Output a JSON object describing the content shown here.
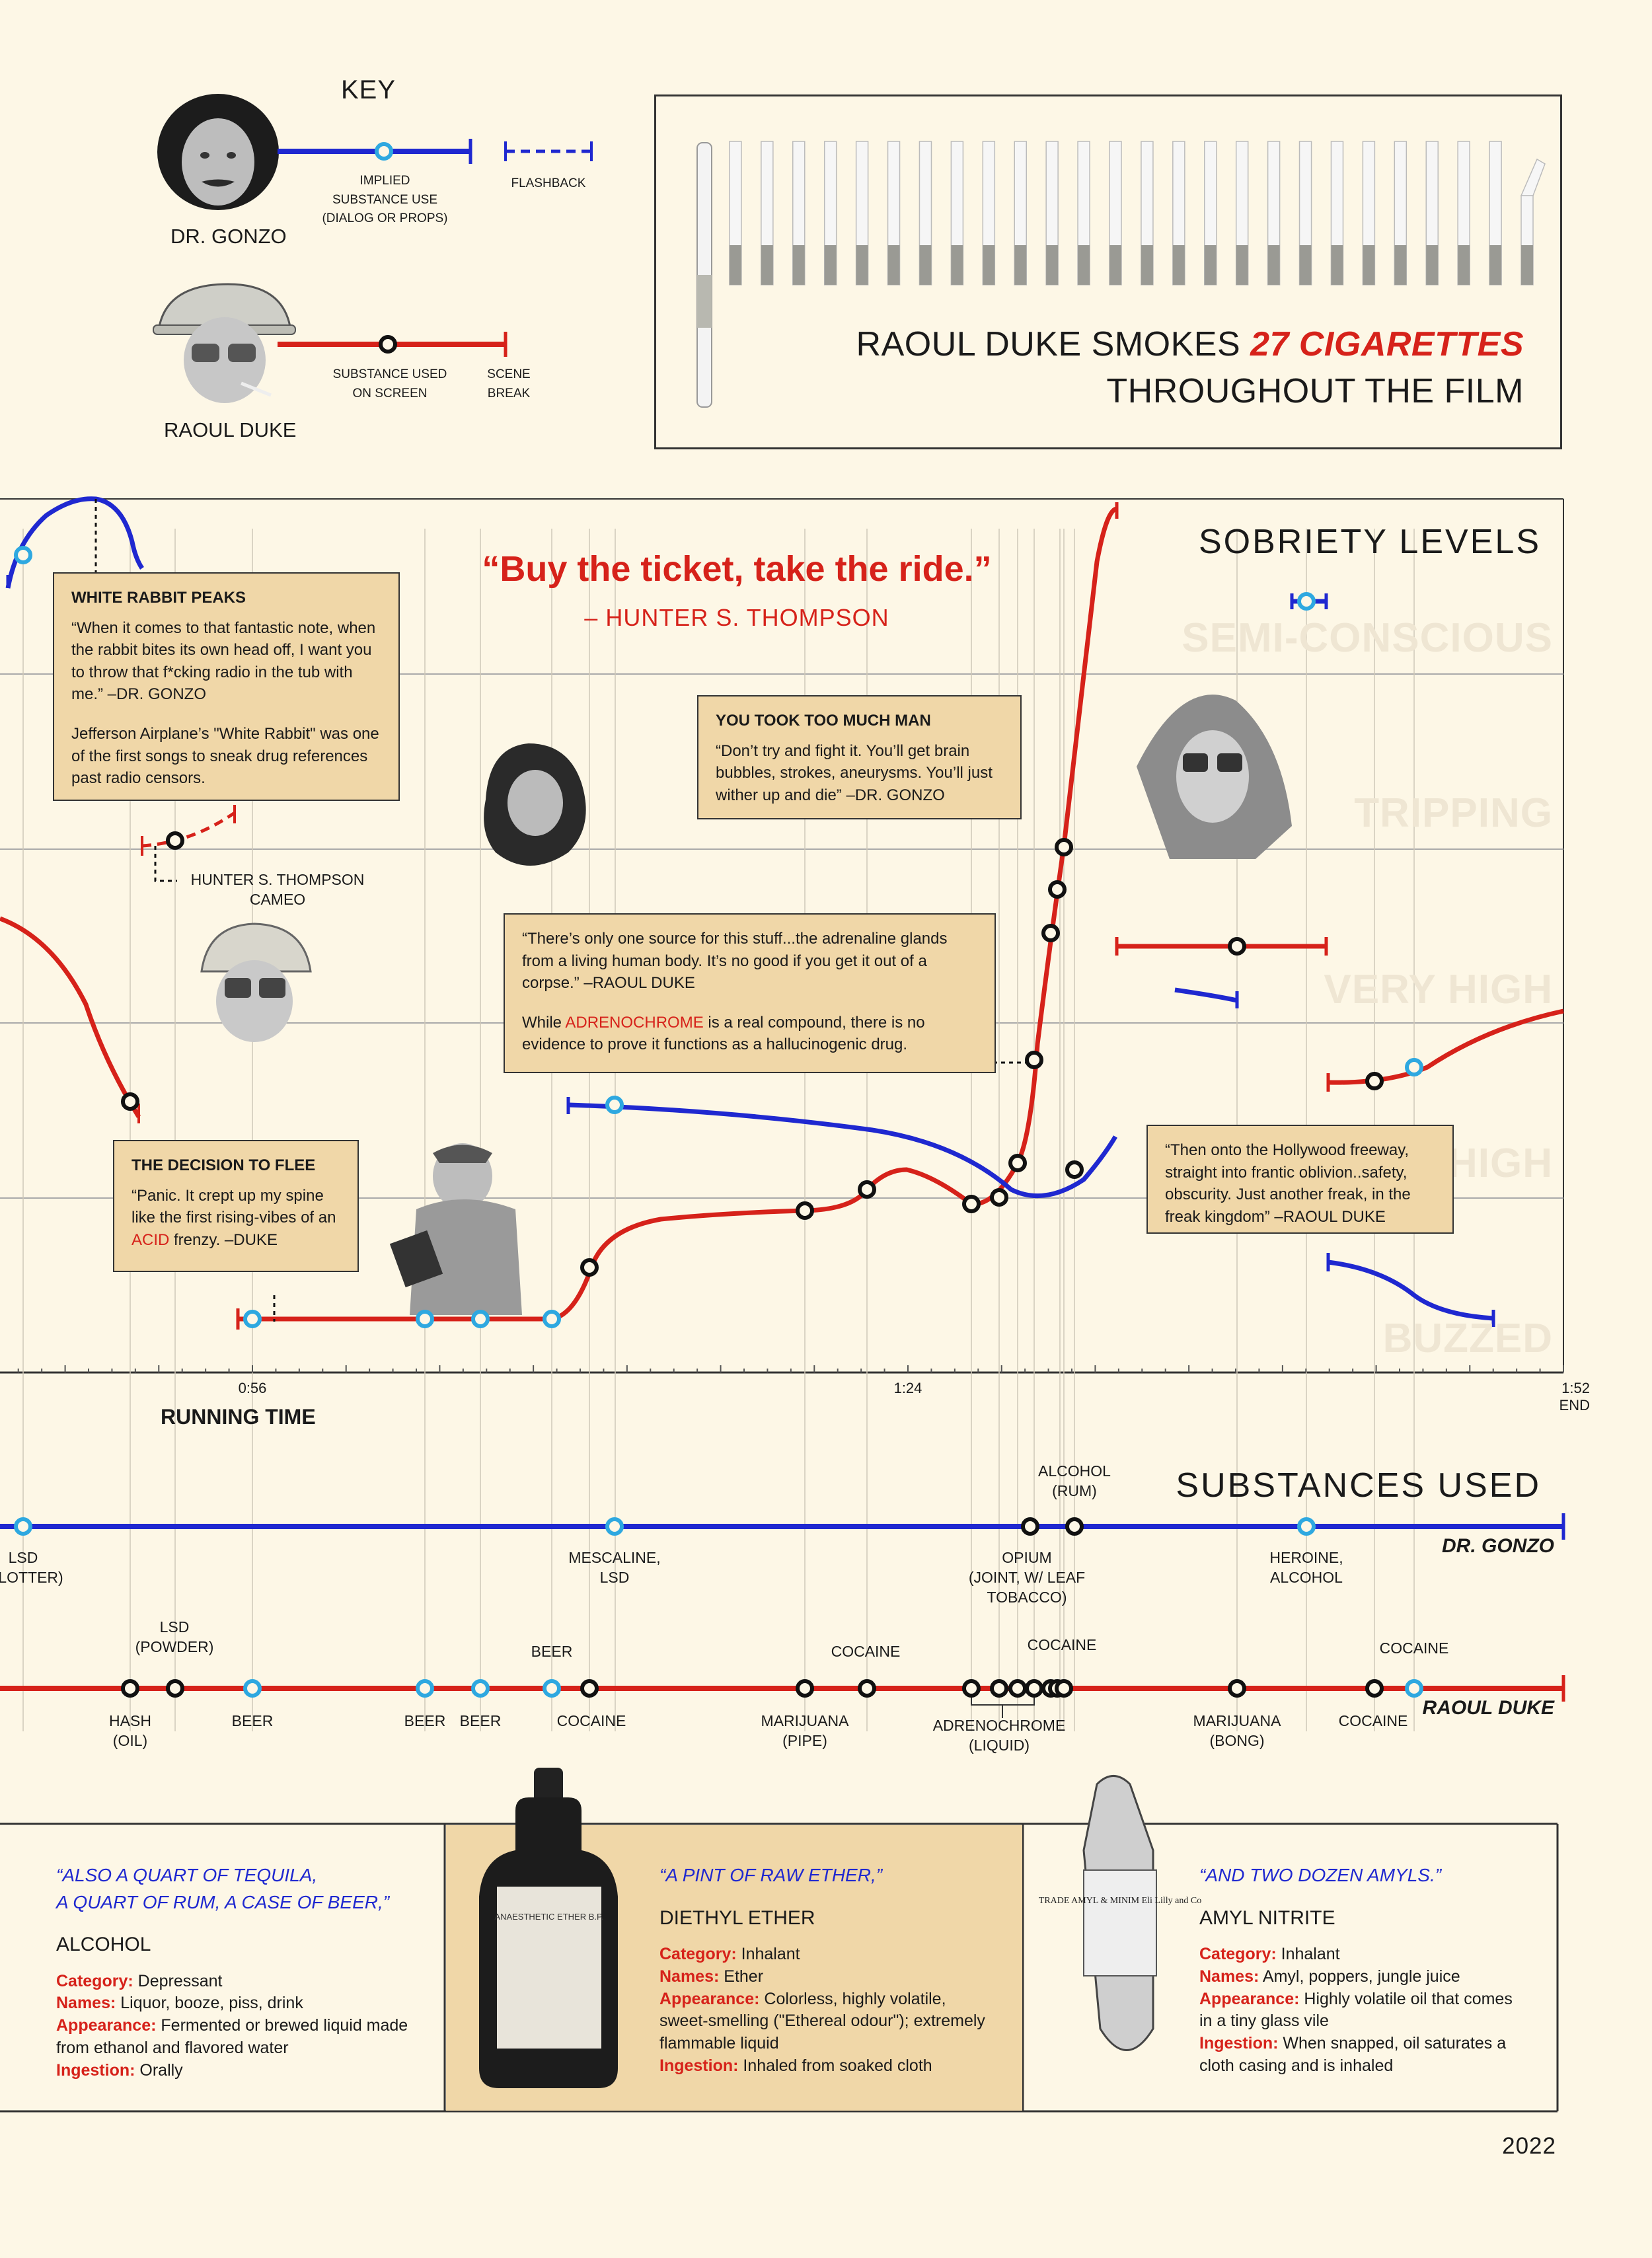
{
  "key": {
    "title": "KEY",
    "gonzo_name": "DR. GONZO",
    "duke_name": "RAOUL DUKE",
    "implied": "IMPLIED\nSUBSTANCE USE\n(DIALOG OR PROPS)",
    "flashback": "FLASHBACK",
    "used": "SUBSTANCE USED\nON SCREEN",
    "break": "SCENE\nBREAK"
  },
  "cigarettes": {
    "line1_prefix": "RAOUL DUKE SMOKES ",
    "count": "27 CIGARETTES",
    "line2": "THROUGHOUT THE FILM",
    "drawn_count": 27
  },
  "colors": {
    "red": "#d6221a",
    "blue": "#1f28d0",
    "cyan": "#2ea8e0",
    "box": "#f0d7a8",
    "bg": "#fdf7e6"
  },
  "sobriety": {
    "title": "SOBRIETY LEVELS",
    "levels": [
      "SEMI-CONSCIOUS",
      "TRIPPING",
      "VERY HIGH",
      "HIGH",
      "BUZZED"
    ]
  },
  "quote": {
    "text": "“Buy the ticket, take the ride.”",
    "by": "– HUNTER S. THOMPSON"
  },
  "boxes": {
    "white_rabbit": {
      "title": "WHITE RABBIT PEAKS",
      "p1": "“When it comes to that fantastic note, when the rabbit bites its own head off, I want you to throw that f*cking radio in the tub with me.” –DR. GONZO",
      "p2": "Jefferson Airplane’s \"White Rabbit\" was one of the first songs to sneak drug references past radio censors."
    },
    "too_much": {
      "title": "YOU TOOK TOO MUCH MAN",
      "p1": "“Don’t try and fight it. You’ll get brain bubbles, strokes, aneurysms. You’ll just wither up and die” –DR. GONZO"
    },
    "adreno": {
      "p1": "“There’s only one source for this stuff...the adrenaline glands from a living human body. It’s no good if you get it out of a corpse.” –RAOUL DUKE",
      "p2_pre": "While ",
      "p2_red": "ADRENOCHROME",
      "p2_post": " is a real compound, there is no evidence to prove it functions as a hallucinogenic drug."
    },
    "flee": {
      "title": "THE DECISION TO FLEE",
      "p1_pre": "“Panic. It crept up my spine like the first rising-vibes of an ",
      "p1_red": "ACID",
      "p1_post": " frenzy. –DUKE"
    },
    "hollywood": {
      "p1": "“Then onto the Hollywood freeway, straight into frantic oblivion..safety, obscurity. Just another freak, in the freak kingdom” –RAOUL DUKE"
    }
  },
  "cameo": "HUNTER S. THOMPSON\nCAMEO",
  "time_axis": {
    "label": "RUNNING TIME",
    "ticks": [
      {
        "t": "0:56",
        "minute": 56
      },
      {
        "t": "1:24",
        "minute": 84
      },
      {
        "t": "1:52\nEND",
        "minute": 112
      }
    ]
  },
  "substances": {
    "title": "SUBSTANCES USED",
    "gonzo_label": "DR. GONZO",
    "duke_label": "RAOUL DUKE",
    "gonzo_labels": [
      {
        "text": "LSD\n(BLOTTER)"
      },
      {
        "text": "MESCALINE,\nLSD"
      },
      {
        "text": "OPIUM\n(JOINT, W/ LEAF\nTOBACCO)"
      },
      {
        "text": "ALCOHOL\n(RUM)"
      },
      {
        "text": "HEROINE,\nALCOHOL"
      }
    ],
    "duke_labels_top": [
      {
        "text": "LSD\n(POWDER)"
      },
      {
        "text": "BEER"
      },
      {
        "text": "COCAINE"
      },
      {
        "text": "COCAINE"
      },
      {
        "text": "COCAINE"
      }
    ],
    "duke_labels_bottom": [
      {
        "text": "HASH\n(OIL)"
      },
      {
        "text": "BEER"
      },
      {
        "text": "BEER"
      },
      {
        "text": "BEER"
      },
      {
        "text": "COCAINE"
      },
      {
        "text": "MARIJUANA\n(PIPE)"
      },
      {
        "text": "ADRENOCHROME\n(LIQUID)"
      },
      {
        "text": "MARIJUANA\n(BONG)"
      },
      {
        "text": "COCAINE"
      }
    ]
  },
  "panels": [
    {
      "quote": "“ALSO A QUART OF TEQUILA,\nA QUART OF RUM, A CASE OF BEER,”",
      "heading": "ALCOHOL",
      "category": "Depressant",
      "names": "Liquor, booze, piss, drink",
      "appearance": "Fermented or brewed liquid made from ethanol and flavored water",
      "ingestion": "Orally"
    },
    {
      "quote": "“A PINT OF RAW ETHER,”",
      "heading": "DIETHYL ETHER",
      "category": "Inhalant",
      "names": "Ether",
      "appearance": " Colorless, highly volatile, sweet-smelling (\"Ethereal odour\"); extremely flammable liquid",
      "ingestion": "Inhaled from soaked cloth"
    },
    {
      "quote": "“AND TWO DOZEN AMYLS.”",
      "heading": "AMYL NITRITE",
      "category": "Inhalant",
      "names": "Amyl, poppers, jungle juice",
      "appearance": " Highly volatile oil that comes in a tiny glass vile",
      "ingestion": "When snapped, oil saturates a cloth casing and is inhaled"
    }
  ],
  "field_labels": {
    "category": "Category:",
    "names": "Names:",
    "appearance": "Appearance:",
    "ingestion": "Ingestion:"
  },
  "bottle_text": "ANAESTHETIC ETHER B.P.",
  "amyl_text": "TRADE AMYL & MINIM Eli Lilly and Co",
  "year": "2022"
}
